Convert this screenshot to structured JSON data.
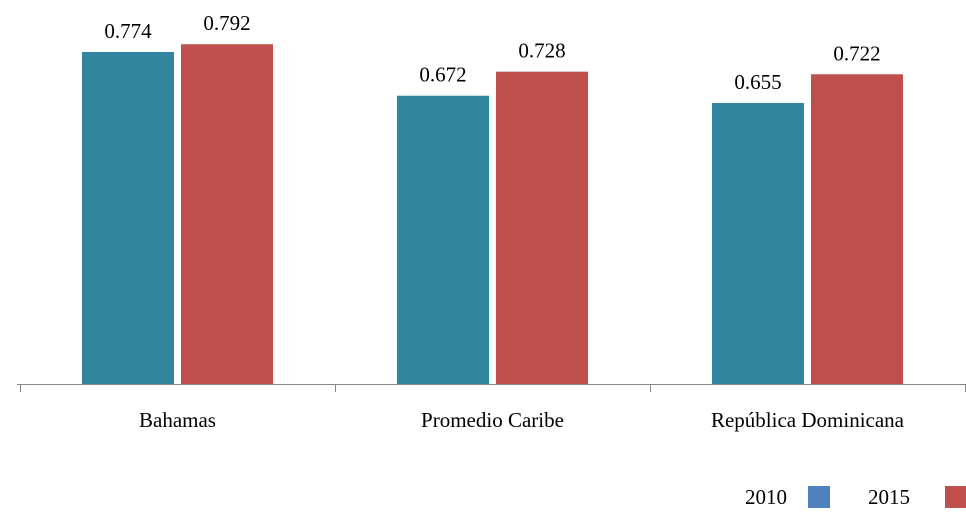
{
  "chart_data": {
    "type": "bar",
    "title": "",
    "xlabel": "",
    "ylabel": "",
    "categories": [
      "Bahamas",
      "Promedio Caribe",
      "República Dominicana"
    ],
    "series": [
      {
        "name": "2010",
        "values": [
          0.774,
          0.672,
          0.655
        ],
        "value_labels": [
          "0.774",
          "0.672",
          "0.655"
        ],
        "bar_color": "#31859C",
        "legend_color": "#4F81BD"
      },
      {
        "name": "2015",
        "values": [
          0.792,
          0.728,
          0.722
        ],
        "value_labels": [
          "0.792",
          "0.728",
          "0.722"
        ],
        "bar_color": "#C0504D",
        "legend_color": "#C0504D"
      }
    ],
    "ylim": [
      0,
      0.8
    ],
    "grid": false,
    "y_axis_visible": false,
    "legend_placement": "bottom-right",
    "axis_color": "#868686"
  }
}
